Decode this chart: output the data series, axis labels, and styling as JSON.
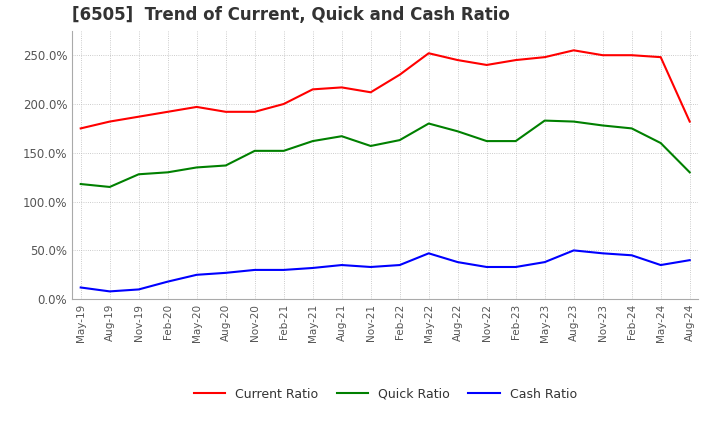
{
  "title": "[6505]  Trend of Current, Quick and Cash Ratio",
  "x_labels": [
    "May-19",
    "Aug-19",
    "Nov-19",
    "Feb-20",
    "May-20",
    "Aug-20",
    "Nov-20",
    "Feb-21",
    "May-21",
    "Aug-21",
    "Nov-21",
    "Feb-22",
    "May-22",
    "Aug-22",
    "Nov-22",
    "Feb-23",
    "May-23",
    "Aug-23",
    "Nov-23",
    "Feb-24",
    "May-24",
    "Aug-24"
  ],
  "current_ratio": [
    175,
    182,
    187,
    192,
    197,
    192,
    192,
    200,
    215,
    217,
    212,
    230,
    252,
    245,
    240,
    245,
    248,
    255,
    250,
    250,
    248,
    182
  ],
  "quick_ratio": [
    118,
    115,
    128,
    130,
    135,
    137,
    152,
    152,
    162,
    167,
    157,
    163,
    180,
    172,
    162,
    162,
    183,
    182,
    178,
    175,
    160,
    130
  ],
  "cash_ratio": [
    12,
    8,
    10,
    18,
    25,
    27,
    30,
    30,
    32,
    35,
    33,
    35,
    47,
    38,
    33,
    33,
    38,
    50,
    47,
    45,
    35,
    40
  ],
  "current_color": "#ff0000",
  "quick_color": "#008000",
  "cash_color": "#0000ff",
  "ylim": [
    0,
    275
  ],
  "yticks": [
    0,
    50,
    100,
    150,
    200,
    250
  ],
  "background_color": "#ffffff",
  "grid_color": "#bbbbbb",
  "title_fontsize": 12,
  "legend_labels": [
    "Current Ratio",
    "Quick Ratio",
    "Cash Ratio"
  ]
}
